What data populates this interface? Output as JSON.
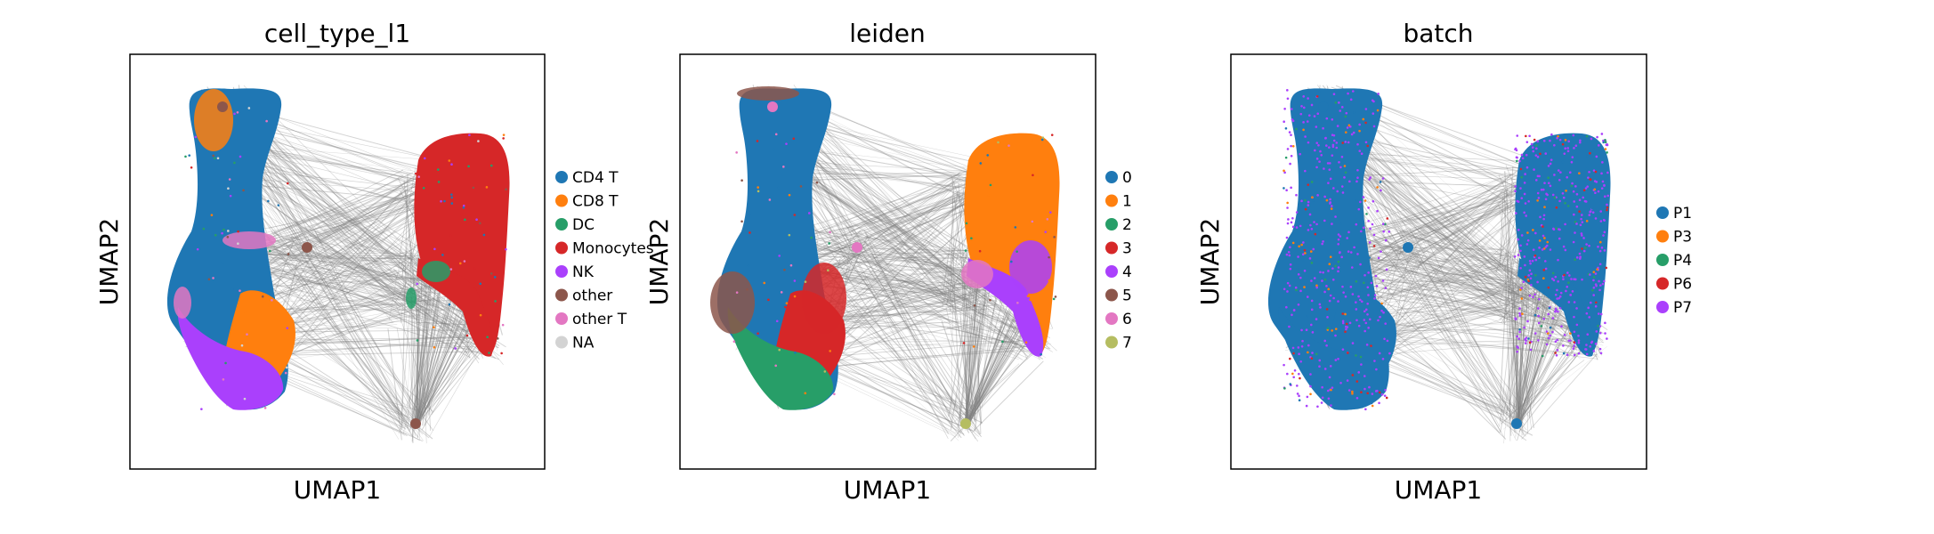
{
  "chart_data": [
    {
      "type": "scatter",
      "title": "cell_type_l1",
      "xlabel": "UMAP1",
      "ylabel": "UMAP2",
      "ticks": "none",
      "legend_placement": "right",
      "categories": [
        {
          "name": "CD4 T",
          "color": "#1f77b4"
        },
        {
          "name": "CD8 T",
          "color": "#ff7f0e"
        },
        {
          "name": "DC",
          "color": "#279e68"
        },
        {
          "name": "Monocytes",
          "color": "#d62728"
        },
        {
          "name": "NK",
          "color": "#aa40fc"
        },
        {
          "name": "other",
          "color": "#8c564b"
        },
        {
          "name": "other T",
          "color": "#e377c2"
        },
        {
          "name": "NA",
          "color": "#d3d3d3"
        }
      ]
    },
    {
      "type": "scatter",
      "title": "leiden",
      "xlabel": "UMAP1",
      "ylabel": "UMAP2",
      "ticks": "none",
      "legend_placement": "right",
      "categories": [
        {
          "name": "0",
          "color": "#1f77b4"
        },
        {
          "name": "1",
          "color": "#ff7f0e"
        },
        {
          "name": "2",
          "color": "#279e68"
        },
        {
          "name": "3",
          "color": "#d62728"
        },
        {
          "name": "4",
          "color": "#aa40fc"
        },
        {
          "name": "5",
          "color": "#8c564b"
        },
        {
          "name": "6",
          "color": "#e377c2"
        },
        {
          "name": "7",
          "color": "#b5bd61"
        }
      ]
    },
    {
      "type": "scatter",
      "title": "batch",
      "xlabel": "UMAP1",
      "ylabel": "UMAP2",
      "ticks": "none",
      "legend_placement": "right",
      "categories": [
        {
          "name": "P1",
          "color": "#1f77b4"
        },
        {
          "name": "P3",
          "color": "#ff7f0e"
        },
        {
          "name": "P4",
          "color": "#279e68"
        },
        {
          "name": "P6",
          "color": "#d62728"
        },
        {
          "name": "P7",
          "color": "#aa40fc"
        }
      ]
    }
  ]
}
